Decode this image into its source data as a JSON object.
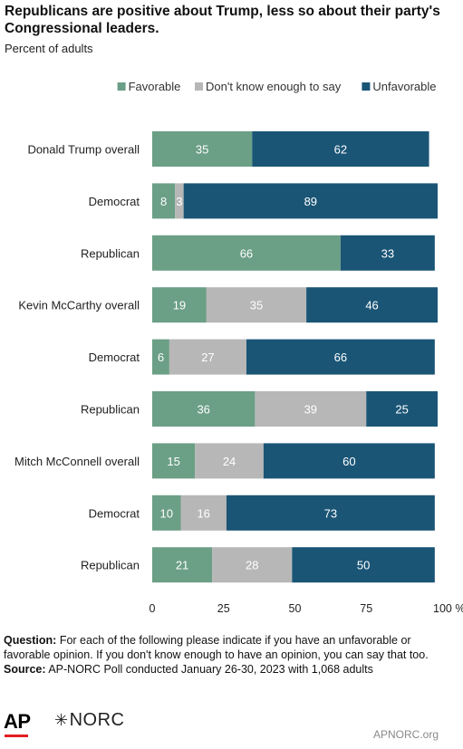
{
  "title": "Republicans are positive about Trump, less so about their party's Congressional leaders.",
  "subtitle": "Percent of adults",
  "chart_data": {
    "type": "bar",
    "orientation": "horizontal",
    "stacked": true,
    "legend_position": "top-right",
    "grid": false,
    "categories": [
      "Donald Trump overall",
      "Democrat",
      "Republican",
      "Kevin McCarthy overall",
      "Democrat",
      "Republican",
      "Mitch McConnell overall",
      "Democrat",
      "Republican"
    ],
    "series": [
      {
        "name": "Favorable",
        "color": "#6b9f86",
        "values": [
          35,
          8,
          66,
          19,
          6,
          36,
          15,
          10,
          21
        ]
      },
      {
        "name": "Don't know enough to say",
        "color": "#b7b7b7",
        "values": [
          0,
          3,
          0,
          35,
          27,
          39,
          24,
          16,
          28
        ]
      },
      {
        "name": "Unfavorable",
        "color": "#1a5576",
        "values": [
          62,
          89,
          33,
          46,
          66,
          25,
          60,
          73,
          50
        ]
      }
    ],
    "xlim": [
      0,
      100
    ],
    "xticks": [
      "0",
      "25",
      "50",
      "75",
      "100 %"
    ],
    "xtick_values": [
      0,
      25,
      50,
      75,
      100
    ]
  },
  "footer": {
    "question_label": "Question:",
    "question_text": "For each of the following please indicate if you have an unfavorable or favorable opinion. If you don't know enough to have an opinion, you can say that too.",
    "source_label": "Source:",
    "source_text": "AP-NORC Poll conducted January 26-30, 2023 with 1,068 adults"
  },
  "logos": {
    "ap": "AP",
    "norc": "NORC"
  },
  "site": "APNORC.org"
}
